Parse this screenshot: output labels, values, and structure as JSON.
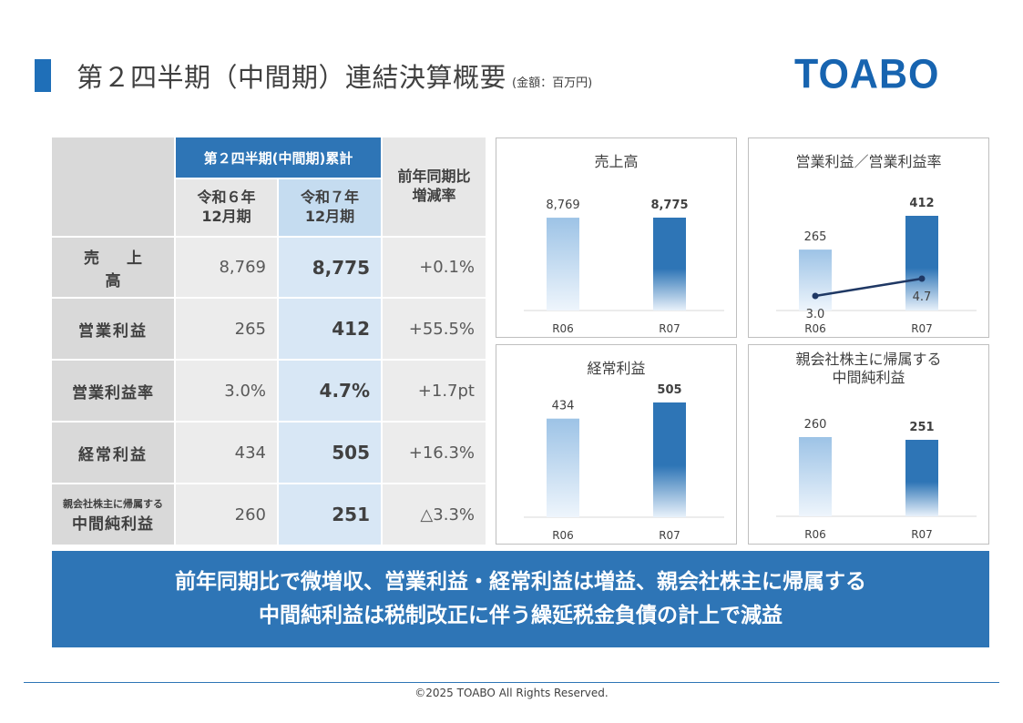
{
  "header": {
    "title": "第２四半期（中間期）連結決算概要",
    "unit": "(金額：百万円)",
    "logo": "TOABO"
  },
  "table": {
    "group_header": "第２四半期(中間期)累計",
    "col_prev": [
      "令和６年",
      "12月期"
    ],
    "col_cur": [
      "令和７年",
      "12月期"
    ],
    "col_chg": [
      "前年同期比",
      "増減率"
    ],
    "rows": [
      {
        "label": "売 上 高",
        "prev": "8,769",
        "cur": "8,775",
        "chg": "+0.1%"
      },
      {
        "label": "営業利益",
        "prev": "265",
        "cur": "412",
        "chg": "+55.5%"
      },
      {
        "label": "営業利益率",
        "prev": "3.0%",
        "cur": "4.7%",
        "chg": "+1.7pt"
      },
      {
        "label": "経常利益",
        "prev": "434",
        "cur": "505",
        "chg": "+16.3%"
      },
      {
        "label_small": "親会社株主に帰属する",
        "label_big": "中間純利益",
        "prev": "260",
        "cur": "251",
        "chg": "△3.3%"
      }
    ]
  },
  "chart_data": [
    {
      "type": "bar",
      "title": "売上高",
      "categories": [
        "R06",
        "R07"
      ],
      "values": [
        8769,
        8775
      ],
      "labels": [
        "8,769",
        "8,775"
      ]
    },
    {
      "type": "bar",
      "title": "営業利益／営業利益率",
      "categories": [
        "R06",
        "R07"
      ],
      "values": [
        265,
        412
      ],
      "labels": [
        "265",
        "412"
      ],
      "line_values": [
        3.0,
        4.7
      ],
      "line_labels": [
        "3.0",
        "4.7"
      ]
    },
    {
      "type": "bar",
      "title": "経常利益",
      "categories": [
        "R06",
        "R07"
      ],
      "values": [
        434,
        505
      ],
      "labels": [
        "434",
        "505"
      ]
    },
    {
      "type": "bar",
      "title": "親会社株主に帰属する\n中間純利益",
      "title_lines": [
        "親会社株主に帰属する",
        "中間純利益"
      ],
      "categories": [
        "R06",
        "R07"
      ],
      "values": [
        260,
        251
      ],
      "labels": [
        "260",
        "251"
      ]
    }
  ],
  "banner": {
    "line1": "前年同期比で微増収、営業利益・経常利益は増益、親会社株主に帰属する",
    "line2": "中間純利益は税制改正に伴う繰延税金負債の計上で減益"
  },
  "footer": "©2025 TOABO All Rights Reserved.",
  "colors": {
    "accent": "#2e75b6",
    "bar_prev": "#9dc3e6",
    "bar_cur": "#2e75b6",
    "line": "#1f3864"
  }
}
